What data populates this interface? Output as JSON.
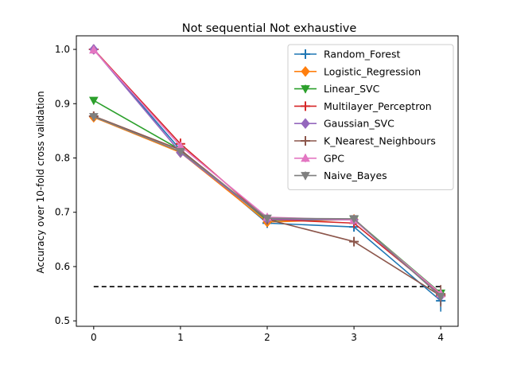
{
  "chart_data": {
    "type": "line",
    "title": "Not sequential Not exhaustive",
    "xlabel": "",
    "ylabel": "Accuracy over 10-fold cross validation",
    "xlim": [
      -0.2,
      4.2
    ],
    "ylim": [
      0.49,
      1.025
    ],
    "x": [
      0,
      1,
      2,
      3,
      4
    ],
    "xticks": [
      0,
      1,
      2,
      3,
      4
    ],
    "yticks": [
      0.5,
      0.6,
      0.7,
      0.8,
      0.9,
      1.0
    ],
    "ytick_labels": [
      "0.5",
      "0.6",
      "0.7",
      "0.8",
      "0.9",
      "1.0"
    ],
    "legend_position": "top-right",
    "baseline": {
      "y": 0.563,
      "style": "dashed",
      "color": "#000000"
    },
    "series": [
      {
        "name": "Random_Forest",
        "color": "#1f77b4",
        "marker": "plus",
        "values": [
          1.0,
          0.815,
          0.68,
          0.673,
          0.537
        ],
        "errors": [
          0.003,
          0.01,
          0.006,
          0.008,
          0.02
        ]
      },
      {
        "name": "Logistic_Regression",
        "color": "#ff7f0e",
        "marker": "diamond",
        "values": [
          0.875,
          0.81,
          0.682,
          0.687,
          0.549
        ],
        "errors": [
          0.003,
          0.006,
          0.005,
          0.004,
          0.005
        ]
      },
      {
        "name": "Linear_SVC",
        "color": "#2ca02c",
        "marker": "tri-down",
        "values": [
          0.906,
          0.815,
          0.685,
          0.687,
          0.551
        ],
        "errors": [
          0.002,
          0.006,
          0.005,
          0.004,
          0.005
        ]
      },
      {
        "name": "Multilayer_Perceptron",
        "color": "#d62728",
        "marker": "plus",
        "values": [
          1.0,
          0.826,
          0.687,
          0.68,
          0.549
        ],
        "errors": [
          0.002,
          0.01,
          0.007,
          0.008,
          0.007
        ]
      },
      {
        "name": "Gaussian_SVC",
        "color": "#9467bd",
        "marker": "diamond",
        "values": [
          1.0,
          0.81,
          0.687,
          0.686,
          0.546
        ],
        "errors": [
          0.002,
          0.004,
          0.004,
          0.004,
          0.004
        ]
      },
      {
        "name": "K_Nearest_Neighbours",
        "color": "#8c564b",
        "marker": "plus",
        "values": [
          0.877,
          0.815,
          0.687,
          0.646,
          0.546
        ],
        "errors": [
          0.003,
          0.01,
          0.008,
          0.008,
          0.02
        ]
      },
      {
        "name": "GPC",
        "color": "#e377c2",
        "marker": "tri-up",
        "values": [
          0.999,
          0.822,
          0.691,
          0.686,
          0.55
        ],
        "errors": [
          0.002,
          0.006,
          0.005,
          0.004,
          0.005
        ]
      },
      {
        "name": "Naive_Bayes",
        "color": "#7f7f7f",
        "marker": "tri-down",
        "values": [
          0.876,
          0.812,
          0.689,
          0.688,
          0.545
        ],
        "errors": [
          0.003,
          0.006,
          0.004,
          0.004,
          0.006
        ]
      }
    ]
  }
}
